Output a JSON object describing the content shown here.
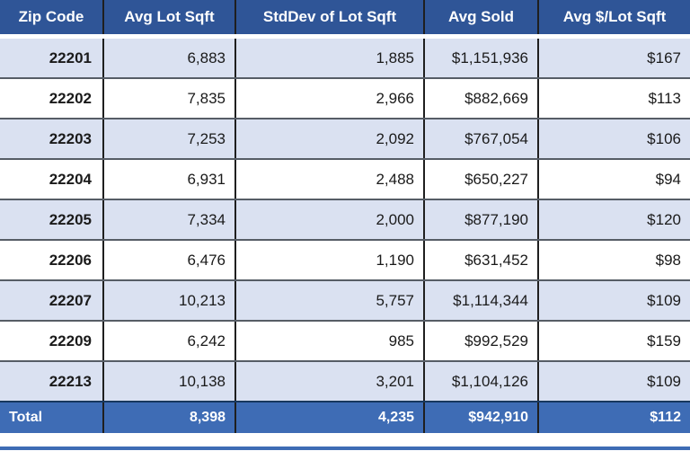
{
  "chart_data": {
    "type": "table",
    "columns": [
      "Zip Code",
      "Avg Lot Sqft",
      "StdDev of Lot Sqft",
      "Avg Sold",
      "Avg $/Lot Sqft"
    ],
    "rows": [
      [
        "22201",
        "6,883",
        "1,885",
        "$1,151,936",
        "$167"
      ],
      [
        "22202",
        "7,835",
        "2,966",
        "$882,669",
        "$113"
      ],
      [
        "22203",
        "7,253",
        "2,092",
        "$767,054",
        "$106"
      ],
      [
        "22204",
        "6,931",
        "2,488",
        "$650,227",
        "$94"
      ],
      [
        "22205",
        "7,334",
        "2,000",
        "$877,190",
        "$120"
      ],
      [
        "22206",
        "6,476",
        "1,190",
        "$631,452",
        "$98"
      ],
      [
        "22207",
        "10,213",
        "5,757",
        "$1,114,344",
        "$109"
      ],
      [
        "22209",
        "6,242",
        "985",
        "$992,529",
        "$159"
      ],
      [
        "22213",
        "10,138",
        "3,201",
        "$1,104,126",
        "$109"
      ]
    ],
    "total_row": [
      "Total",
      "8,398",
      "4,235",
      "$942,910",
      "$112"
    ]
  },
  "colors": {
    "header_bg": "#2F5597",
    "header_text": "#FFFFFF",
    "row_alt_bg": "#DAE1F1",
    "row_bg": "#FFFFFF",
    "total_bg": "#3E6CB5",
    "total_text": "#FFFFFF",
    "body_text": "#1A1A1A",
    "grid_vertical": "#1F1F1F",
    "grid_horizontal": "#565D66",
    "total_top_border": "#17375E"
  }
}
